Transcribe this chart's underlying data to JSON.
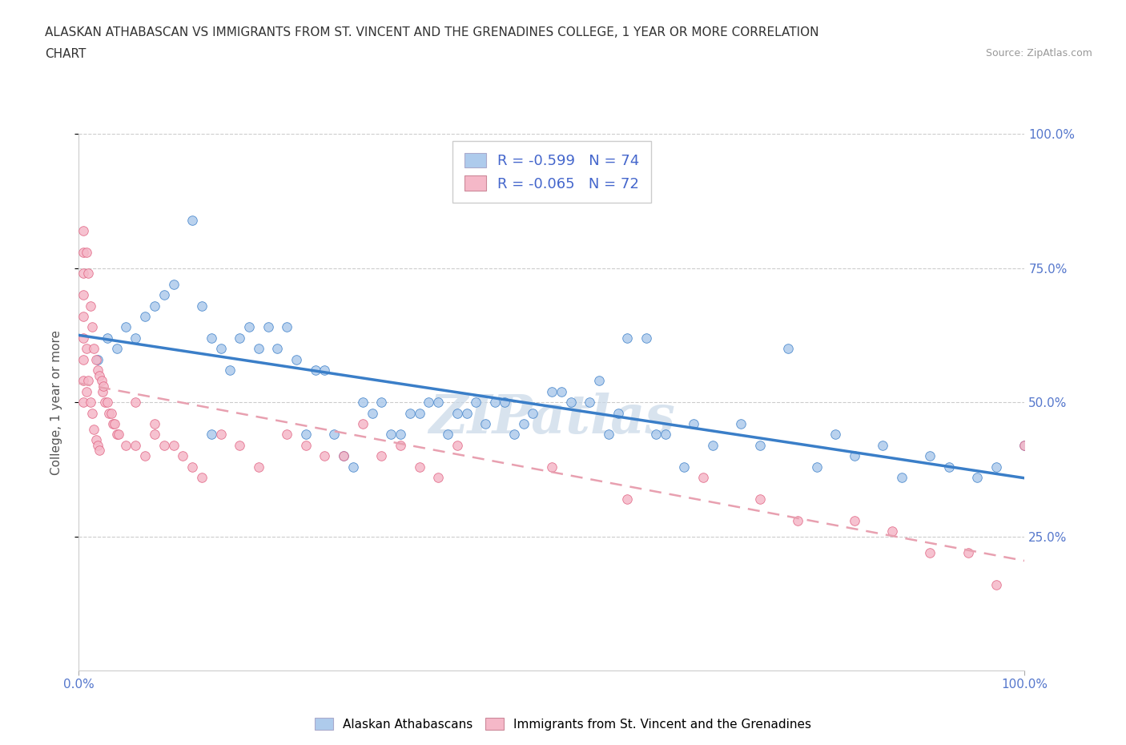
{
  "title_line1": "ALASKAN ATHABASCAN VS IMMIGRANTS FROM ST. VINCENT AND THE GRENADINES COLLEGE, 1 YEAR OR MORE CORRELATION",
  "title_line2": "CHART",
  "source_text": "Source: ZipAtlas.com",
  "ylabel": "College, 1 year or more",
  "xmin": 0.0,
  "xmax": 1.0,
  "ymin": 0.0,
  "ymax": 1.0,
  "y_tick_values": [
    0.25,
    0.5,
    0.75,
    1.0
  ],
  "y_tick_labels": [
    "25.0%",
    "50.0%",
    "75.0%",
    "100.0%"
  ],
  "x_tick_values": [
    0.0,
    1.0
  ],
  "x_tick_labels": [
    "0.0%",
    "100.0%"
  ],
  "r1": -0.599,
  "n1": 74,
  "r2": -0.065,
  "n2": 72,
  "color_blue": "#aecbec",
  "color_pink": "#f5b8c8",
  "color_blue_line": "#3a7ec8",
  "color_pink_line": "#e8a0b0",
  "watermark": "ZIPatlas",
  "blue_scatter_x": [
    0.02,
    0.03,
    0.04,
    0.05,
    0.06,
    0.07,
    0.08,
    0.09,
    0.1,
    0.12,
    0.13,
    0.14,
    0.15,
    0.17,
    0.18,
    0.19,
    0.21,
    0.22,
    0.23,
    0.25,
    0.26,
    0.28,
    0.3,
    0.32,
    0.33,
    0.35,
    0.37,
    0.38,
    0.4,
    0.42,
    0.43,
    0.45,
    0.47,
    0.5,
    0.52,
    0.55,
    0.57,
    0.6,
    0.62,
    0.65,
    0.67,
    0.7,
    0.72,
    0.75,
    0.78,
    0.8,
    0.82,
    0.85,
    0.87,
    0.9,
    0.92,
    0.95,
    0.97,
    1.0,
    0.14,
    0.16,
    0.2,
    0.24,
    0.27,
    0.29,
    0.31,
    0.34,
    0.36,
    0.39,
    0.41,
    0.44,
    0.46,
    0.48,
    0.51,
    0.54,
    0.56,
    0.58,
    0.61,
    0.64
  ],
  "blue_scatter_y": [
    0.58,
    0.62,
    0.6,
    0.64,
    0.62,
    0.66,
    0.68,
    0.7,
    0.72,
    0.84,
    0.68,
    0.62,
    0.6,
    0.62,
    0.64,
    0.6,
    0.6,
    0.64,
    0.58,
    0.56,
    0.56,
    0.4,
    0.5,
    0.5,
    0.44,
    0.48,
    0.5,
    0.5,
    0.48,
    0.5,
    0.46,
    0.5,
    0.46,
    0.52,
    0.5,
    0.54,
    0.48,
    0.62,
    0.44,
    0.46,
    0.42,
    0.46,
    0.42,
    0.6,
    0.38,
    0.44,
    0.4,
    0.42,
    0.36,
    0.4,
    0.38,
    0.36,
    0.38,
    0.42,
    0.44,
    0.56,
    0.64,
    0.44,
    0.44,
    0.38,
    0.48,
    0.44,
    0.48,
    0.44,
    0.48,
    0.5,
    0.44,
    0.48,
    0.52,
    0.5,
    0.44,
    0.62,
    0.44,
    0.38
  ],
  "pink_scatter_x": [
    0.005,
    0.005,
    0.005,
    0.005,
    0.005,
    0.005,
    0.005,
    0.005,
    0.005,
    0.008,
    0.008,
    0.008,
    0.01,
    0.01,
    0.012,
    0.012,
    0.014,
    0.014,
    0.016,
    0.016,
    0.018,
    0.018,
    0.02,
    0.02,
    0.022,
    0.022,
    0.024,
    0.025,
    0.026,
    0.028,
    0.03,
    0.032,
    0.034,
    0.036,
    0.038,
    0.04,
    0.042,
    0.05,
    0.06,
    0.07,
    0.08,
    0.09,
    0.1,
    0.11,
    0.12,
    0.13,
    0.15,
    0.17,
    0.19,
    0.22,
    0.24,
    0.26,
    0.28,
    0.3,
    0.32,
    0.34,
    0.36,
    0.38,
    0.4,
    0.5,
    0.58,
    0.66,
    0.72,
    0.76,
    0.82,
    0.86,
    0.9,
    0.94,
    0.97,
    1.0,
    0.06,
    0.08
  ],
  "pink_scatter_y": [
    0.82,
    0.78,
    0.74,
    0.7,
    0.66,
    0.62,
    0.58,
    0.54,
    0.5,
    0.78,
    0.6,
    0.52,
    0.74,
    0.54,
    0.68,
    0.5,
    0.64,
    0.48,
    0.6,
    0.45,
    0.58,
    0.43,
    0.56,
    0.42,
    0.55,
    0.41,
    0.54,
    0.52,
    0.53,
    0.5,
    0.5,
    0.48,
    0.48,
    0.46,
    0.46,
    0.44,
    0.44,
    0.42,
    0.42,
    0.4,
    0.44,
    0.42,
    0.42,
    0.4,
    0.38,
    0.36,
    0.44,
    0.42,
    0.38,
    0.44,
    0.42,
    0.4,
    0.4,
    0.46,
    0.4,
    0.42,
    0.38,
    0.36,
    0.42,
    0.38,
    0.32,
    0.36,
    0.32,
    0.28,
    0.28,
    0.26,
    0.22,
    0.22,
    0.16,
    0.42,
    0.5,
    0.46
  ]
}
